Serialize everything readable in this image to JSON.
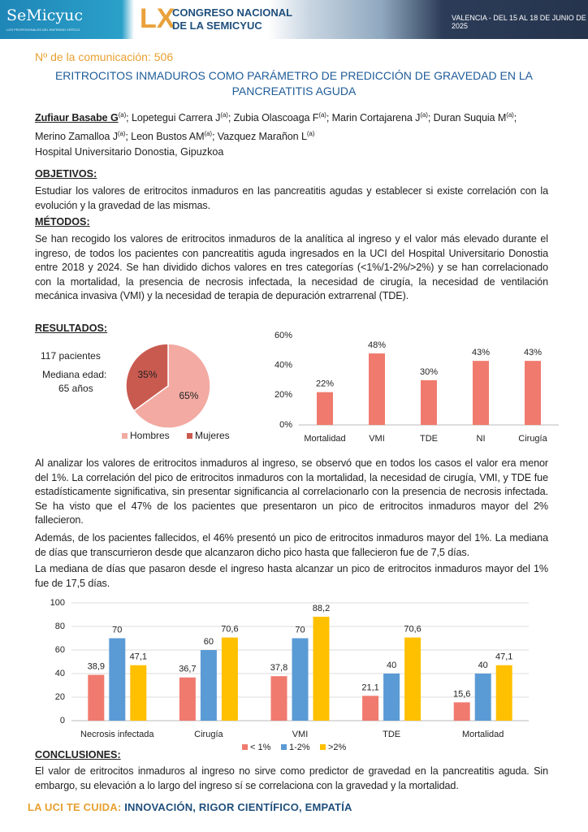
{
  "header": {
    "logo": "SeMicyuc",
    "logo_subtitle": "LOS PROFESIONALES DEL ENFERMO CRÍTICO",
    "edition": "LX",
    "congress_line1": "CONGRESO NACIONAL",
    "congress_line2": "DE LA SEMICYUC",
    "dates": "VALENCIA - DEL 15 AL 18 DE JUNIO DE 2025"
  },
  "communication": "Nº de la comunicación: 506",
  "title": "ERITROCITOS INMADUROS COMO PARÁMETRO DE PREDICCIÓN DE GRAVEDAD EN LA PANCREATITIS AGUDA",
  "authors": [
    {
      "name": "Zufiaur Basabe G",
      "sup": "(a)"
    },
    {
      "name": "; Lopetegui Carrera J",
      "sup": "(a)"
    },
    {
      "name": "; Zubia Olascoaga F",
      "sup": "(a)"
    },
    {
      "name": "; Marin Cortajarena J",
      "sup": "(a)"
    },
    {
      "name": "; Duran Suquia M",
      "sup": "(a)"
    },
    {
      "name": "; Merino Zamalloa J",
      "sup": "(a)"
    },
    {
      "name": "; Leon Bustos AM",
      "sup": "(a)"
    },
    {
      "name": "; Vazquez Marañon L",
      "sup": "(a)"
    }
  ],
  "hospital": "Hospital Universitario Donostia, Gipuzkoa",
  "objetivos": {
    "heading": "OBJETIVOS:",
    "text": "Estudiar los valores de eritrocitos inmaduros en las pancreatitis agudas y establecer si existe correlación con la evolución y la gravedad de las mismas."
  },
  "metodos": {
    "heading": "MÉTODOS:",
    "text": "Se han recogido los valores de eritrocitos inmaduros de la analítica al ingreso y el valor más elevado durante el ingreso, de todos los pacientes con pancreatitis aguda ingresados en la UCI del Hospital Universitario Donostia entre 2018 y 2024. Se han dividido dichos valores en tres categorías (<1%/1-2%/>2%) y se han correlacionado con la mortalidad, la presencia de necrosis infectada, la necesidad de cirugía, la necesidad de ventilación mecánica invasiva (VMI) y la necesidad de terapia de depuración extrarrenal (TDE)."
  },
  "resultados": {
    "heading": "RESULTADOS:",
    "patients": "117 pacientes",
    "age_label": "Mediana edad:",
    "age_value": "65 años",
    "paragraphs": [
      "Al analizar los valores de eritrocitos inmaduros al ingreso, se observó que en todos los casos el valor era menor del 1%. La correlación del pico de eritrocitos inmaduros con la mortalidad, la necesidad de cirugía, VMI, y TDE fue estadísticamente significativa, sin presentar significancia al correlacionarlo con la presencia de necrosis infectada. Se ha visto que el 47% de los pacientes que presentaron un pico de eritrocitos inmaduros mayor del 2% fallecieron.",
      "Además, de los pacientes fallecidos, el 46% presentó un pico de eritrocitos inmaduros mayor del 1%. La mediana de días que transcurrieron desde que alcanzaron dicho pico hasta que fallecieron fue de 7,5 días.",
      "La mediana de días que pasaron desde el ingreso hasta alcanzar un pico de eritrocitos inmaduros mayor del 1% fue de 17,5 días."
    ]
  },
  "chart_data": [
    {
      "type": "pie",
      "categories": [
        "Hombres",
        "Mujeres"
      ],
      "values": [
        65,
        35
      ],
      "value_labels": [
        "65%",
        "35%"
      ],
      "colors": [
        "#f2aaa2",
        "#c95a50"
      ],
      "legend": "bottom"
    },
    {
      "type": "bar",
      "categories": [
        "Mortalidad",
        "VMI",
        "TDE",
        "NI",
        "Cirugía"
      ],
      "values": [
        22,
        48,
        30,
        43,
        43
      ],
      "value_labels": [
        "22%",
        "48%",
        "30%",
        "43%",
        "43%"
      ],
      "color": "#f07a6e",
      "ylim": [
        0,
        60
      ],
      "yticks": [
        {
          "value": 0,
          "label": "0%"
        },
        {
          "value": 20,
          "label": "20%"
        },
        {
          "value": 40,
          "label": "40%"
        },
        {
          "value": 60,
          "label": "60%"
        }
      ]
    },
    {
      "type": "bar",
      "categories": [
        "Necrosis infectada",
        "Cirugía",
        "VMI",
        "TDE",
        "Mortalidad"
      ],
      "series": [
        {
          "name": "< 1%",
          "color": "#f07a6e",
          "values": [
            38.9,
            36.7,
            37.8,
            21.1,
            15.6
          ],
          "value_labels": [
            "38,9",
            "36,7",
            "37,8",
            "21,1",
            "15,6"
          ]
        },
        {
          "name": "1-2%",
          "color": "#5b9bd5",
          "values": [
            70,
            60,
            70,
            40,
            40
          ]
        },
        {
          "name": ">2%",
          "color": "#ffc000",
          "values": [
            47.1,
            70.6,
            88.2,
            70.6,
            47.1
          ],
          "value_labels": [
            "47,1",
            "70,6",
            "88,2",
            "70,6",
            "47,1"
          ]
        }
      ],
      "ylim": [
        0,
        100
      ],
      "yticks": [
        0,
        20,
        40,
        60,
        80,
        100
      ],
      "grid": true,
      "legend": "bottom"
    }
  ],
  "conclusiones": {
    "heading": "CONCLUSIONES:",
    "text": "El valor de eritrocitos inmaduros al ingreso no sirve como predictor de gravedad en la pancreatitis aguda. Sin embargo, su elevación a lo largo del ingreso sí se correlaciona con la gravedad y la mortalidad."
  },
  "footer": {
    "lead": "LA UCI TE CUIDA:",
    "values": " INNOVACIÓN, RIGOR CIENTÍFICO, EMPATÍA"
  }
}
